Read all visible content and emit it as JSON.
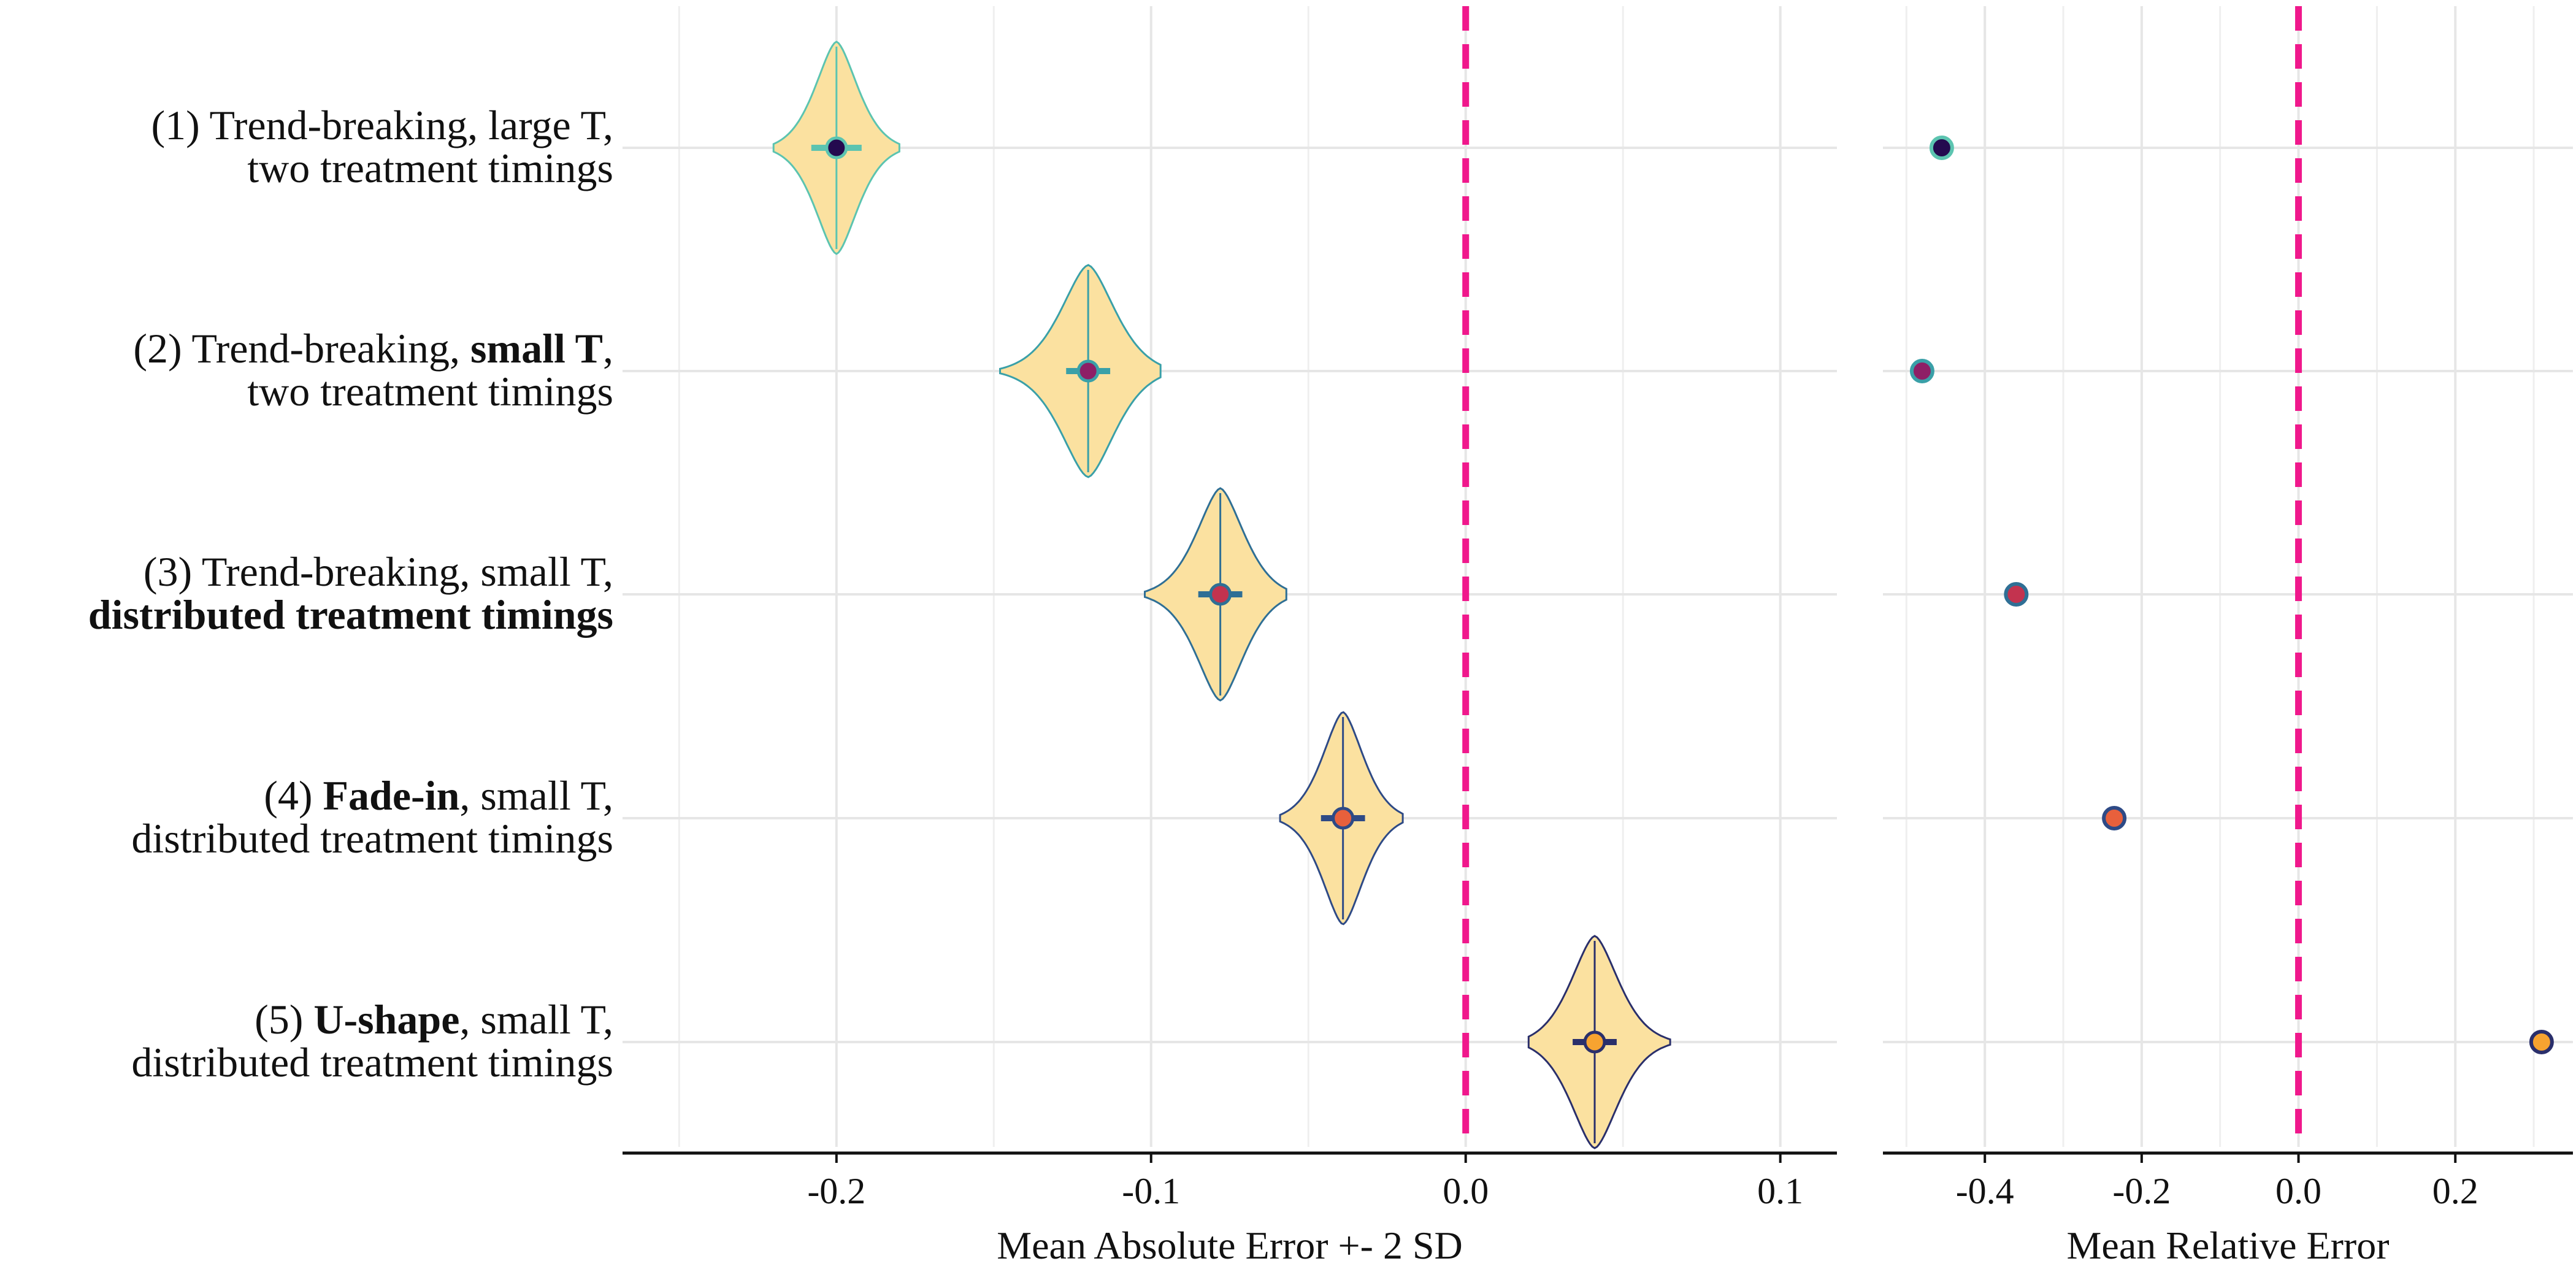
{
  "chart_data": [
    {
      "type": "violin",
      "xlabel": "Mean Absolute Error +- 2 SD",
      "xlim": [
        -0.268,
        0.118
      ],
      "ticks": [
        -0.2,
        -0.1,
        0.0,
        0.1
      ],
      "tick_labels": [
        "-0.2",
        "-0.1",
        "0.0",
        "0.1"
      ],
      "minor_gridlines": [
        -0.25,
        -0.15,
        -0.05,
        0.05
      ],
      "reference_line": 0.0,
      "grid": true,
      "series": [
        {
          "name": "(1) Trend-breaking, large T, two treatment timings",
          "mean": -0.2,
          "sd": 0.0015,
          "min": -0.22,
          "max": -0.18,
          "lo": -0.208,
          "hi": -0.192,
          "color": "#240a4f",
          "outline": "#5cc4b0"
        },
        {
          "name": "(2) Trend-breaking, small T, two treatment timings",
          "mean": -0.12,
          "sd": 0.0015,
          "min": -0.148,
          "max": -0.097,
          "lo": -0.127,
          "hi": -0.113,
          "color": "#8e1f66",
          "outline": "#3aa0a8"
        },
        {
          "name": "(3) Trend-breaking, small T, distributed treatment timings",
          "mean": -0.078,
          "sd": 0.0015,
          "min": -0.102,
          "max": -0.057,
          "lo": -0.085,
          "hi": -0.071,
          "color": "#c3334f",
          "outline": "#2f6f95"
        },
        {
          "name": "(4) Fade-in, small T, distributed treatment timings",
          "mean": -0.039,
          "sd": 0.0015,
          "min": -0.059,
          "max": -0.02,
          "lo": -0.046,
          "hi": -0.032,
          "color": "#e8603c",
          "outline": "#2e4a86"
        },
        {
          "name": "(5) U-shape, small T, distributed treatment timings",
          "mean": 0.041,
          "sd": 0.0015,
          "min": 0.02,
          "max": 0.065,
          "lo": 0.034,
          "hi": 0.048,
          "color": "#f7a330",
          "outline": "#2a2f6b"
        }
      ]
    },
    {
      "type": "scatter",
      "xlabel": "Mean Relative Error",
      "xlim": [
        -0.53,
        0.35
      ],
      "ticks": [
        -0.4,
        -0.2,
        0.0,
        0.2
      ],
      "tick_labels": [
        "-0.4",
        "-0.2",
        "0.0",
        "0.2"
      ],
      "minor_gridlines": [
        -0.5,
        -0.3,
        -0.1,
        0.1,
        0.3
      ],
      "reference_line": 0.0,
      "grid": true,
      "values": [
        -0.455,
        -0.48,
        -0.36,
        -0.235,
        0.31
      ]
    }
  ],
  "row_labels": [
    {
      "line1": [
        {
          "t": "(1) Trend-breaking, large T,",
          "b": false
        }
      ],
      "line2": [
        {
          "t": "two treatment timings",
          "b": false
        }
      ]
    },
    {
      "line1": [
        {
          "t": "(2) Trend-breaking, ",
          "b": false
        },
        {
          "t": "small T",
          "b": true
        },
        {
          "t": ",",
          "b": false
        }
      ],
      "line2": [
        {
          "t": "two treatment timings",
          "b": false
        }
      ]
    },
    {
      "line1": [
        {
          "t": "(3) Trend-breaking, small T,",
          "b": false
        }
      ],
      "line2": [
        {
          "t": "distributed treatment timings",
          "b": true
        }
      ]
    },
    {
      "line1": [
        {
          "t": "(4) ",
          "b": false
        },
        {
          "t": "Fade-in",
          "b": true
        },
        {
          "t": ", small T,",
          "b": false
        }
      ],
      "line2": [
        {
          "t": "distributed treatment timings",
          "b": false
        }
      ]
    },
    {
      "line1": [
        {
          "t": "(5) ",
          "b": false
        },
        {
          "t": "U-shape",
          "b": true
        },
        {
          "t": ", small T,",
          "b": false
        }
      ],
      "line2": [
        {
          "t": "distributed treatment timings",
          "b": false
        }
      ]
    }
  ],
  "colors": {
    "violin_fill": "#fbe1a0",
    "grid": "#e6e6e6",
    "reference": "#f0188c",
    "axis": "#111111"
  }
}
